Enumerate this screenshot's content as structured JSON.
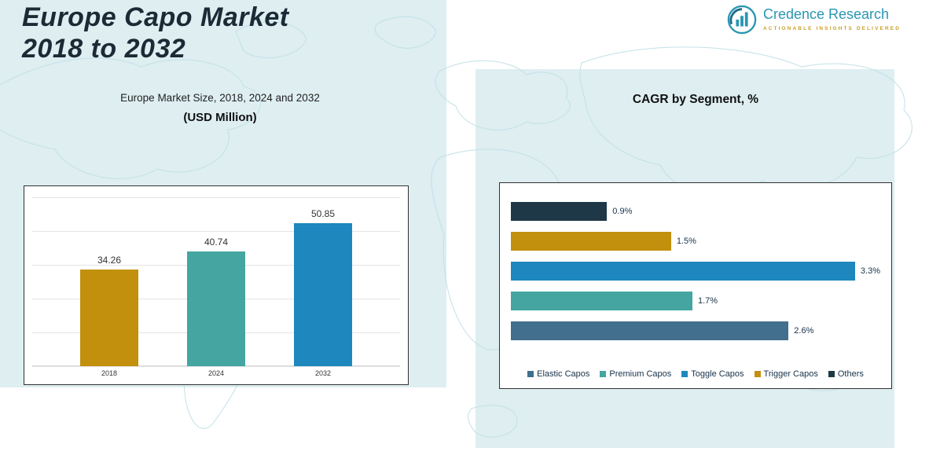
{
  "page": {
    "title_line1": "Europe Capo Market",
    "title_line2": "2018 to 2032"
  },
  "logo": {
    "name": "Credence Research",
    "tagline": "Actionable Insights Delivered"
  },
  "chart_data": [
    {
      "type": "bar",
      "orientation": "vertical",
      "title": "Europe Market Size, 2018, 2024 and 2032",
      "subtitle": "(USD Million)",
      "categories": [
        "2018",
        "2024",
        "2032"
      ],
      "values": [
        34.26,
        40.74,
        50.85
      ],
      "value_labels": [
        "34.26",
        "40.74",
        "50.85"
      ],
      "colors": [
        "#C2900D",
        "#44A5A1",
        "#1E87BD"
      ],
      "ylim": [
        0,
        60
      ],
      "grid": true,
      "legend_position": "none"
    },
    {
      "type": "bar",
      "orientation": "horizontal",
      "title": "CAGR by Segment, %",
      "categories": [
        "Others",
        "Trigger Capos",
        "Toggle Capos",
        "Premium Capos",
        "Elastic Capos"
      ],
      "values": [
        0.9,
        1.5,
        3.3,
        1.7,
        2.6
      ],
      "value_labels": [
        "0.9%",
        "1.5%",
        "3.3%",
        "1.7%",
        "2.6%"
      ],
      "colors": [
        "#1F3848",
        "#C2900D",
        "#1E87BD",
        "#44A5A1",
        "#416F8D"
      ],
      "xlim": [
        0,
        3.4
      ],
      "grid": false,
      "legend_position": "bottom",
      "legend": [
        {
          "label": "Elastic Capos",
          "color": "#416F8D"
        },
        {
          "label": "Premium Capos",
          "color": "#44A5A1"
        },
        {
          "label": "Toggle Capos",
          "color": "#1E87BD"
        },
        {
          "label": "Trigger Capos",
          "color": "#C2900D"
        },
        {
          "label": "Others",
          "color": "#1F3848"
        }
      ]
    }
  ]
}
